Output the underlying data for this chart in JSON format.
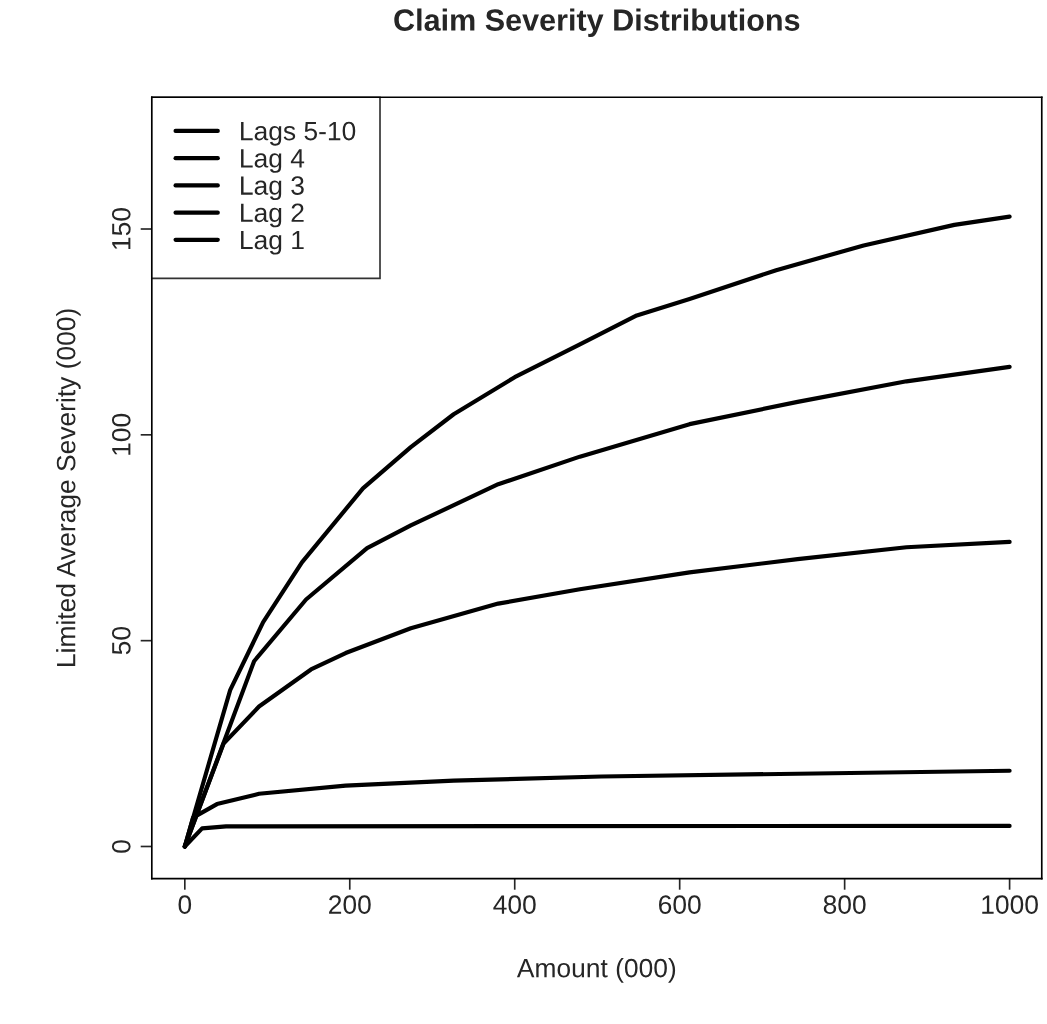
{
  "chart_data": {
    "type": "line",
    "title": "Claim Severity Distributions",
    "xlabel": "Amount (000)",
    "ylabel": "Limited Average Severity (000)",
    "xlim": [
      -40,
      1039
    ],
    "ylim": [
      -7.8,
      182
    ],
    "xticks": [
      0,
      200,
      400,
      600,
      800,
      1000
    ],
    "yticks": [
      0,
      50,
      100,
      150
    ],
    "grid": false,
    "legend": "top left",
    "marker": "none",
    "line_style": "solid",
    "series": [
      {
        "name": "Lags 5-10",
        "color": "#000000",
        "x": [
          0,
          55,
          95,
          142,
          216,
          274,
          326,
          400,
          479,
          548,
          612,
          717,
          823,
          933,
          1000
        ],
        "values": [
          0,
          38,
          54.5,
          69,
          87,
          97,
          105,
          114,
          122,
          129,
          133,
          140,
          146,
          151,
          153
        ]
      },
      {
        "name": "Lag 4",
        "color": "#000000",
        "x": [
          0,
          84,
          147,
          221,
          274,
          380,
          479,
          612,
          743,
          875,
          1000
        ],
        "values": [
          0,
          45,
          60,
          72.5,
          78,
          88,
          94.7,
          102.6,
          108,
          113,
          116.5
        ]
      },
      {
        "name": "Lag 3",
        "color": "#000000",
        "x": [
          0,
          47,
          90,
          153,
          195,
          274,
          380,
          479,
          612,
          743,
          875,
          1000
        ],
        "values": [
          0,
          25,
          34,
          43,
          47,
          53,
          59,
          62.5,
          66.6,
          69.8,
          72.7,
          74
        ]
      },
      {
        "name": "Lag 2",
        "color": "#000000",
        "x": [
          0,
          10,
          39,
          90,
          195,
          326,
          505,
          1000
        ],
        "values": [
          0,
          7,
          10.3,
          12.8,
          14.8,
          16,
          17,
          18.4
        ]
      },
      {
        "name": "Lag 1",
        "color": "#000000",
        "x": [
          0,
          21,
          50,
          1000
        ],
        "values": [
          0,
          4.4,
          4.9,
          5
        ]
      }
    ]
  }
}
